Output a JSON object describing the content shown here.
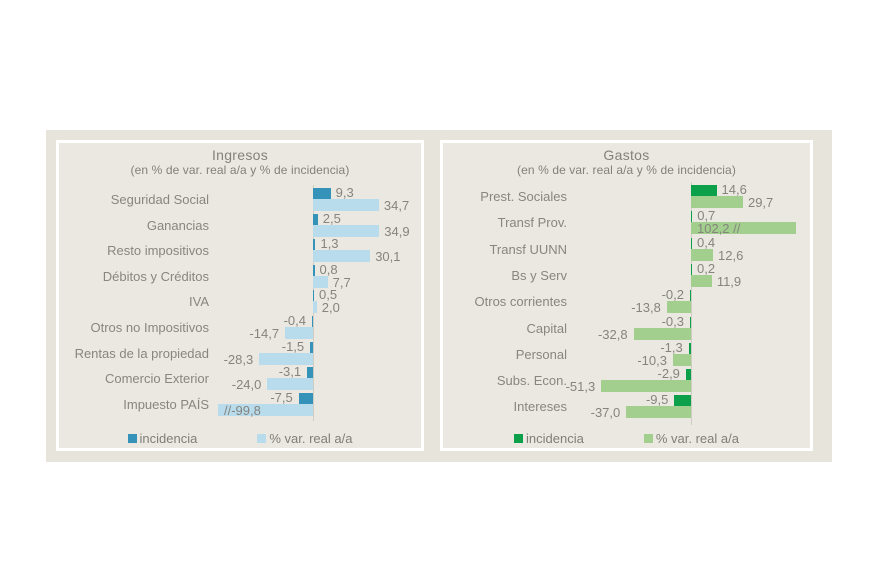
{
  "chart_data": [
    {
      "type": "bar",
      "orientation": "horizontal",
      "title": "Ingresos",
      "subtitle": "(en % de var. real a/a y % de incidencia)",
      "series_names": [
        "incidencia",
        "% var. real a/a"
      ],
      "colors": {
        "incidencia": "#3593b9",
        "variacion": "#b8dcec"
      },
      "legend": [
        {
          "name": "incidencia",
          "color": "#3593b9"
        },
        {
          "name": "% var. real a/a",
          "color": "#b8dcec"
        }
      ],
      "rows": [
        {
          "category": "Seguridad Social",
          "incidencia": 9.3,
          "incidencia_label": "9,3",
          "variacion": 34.7,
          "variacion_label": "34,7"
        },
        {
          "category": "Ganancias",
          "incidencia": 2.5,
          "incidencia_label": "2,5",
          "variacion": 34.9,
          "variacion_label": "34,9"
        },
        {
          "category": "Resto impositivos",
          "incidencia": 1.3,
          "incidencia_label": "1,3",
          "variacion": 30.1,
          "variacion_label": "30,1"
        },
        {
          "category": "Débitos y Créditos",
          "incidencia": 0.8,
          "incidencia_label": "0,8",
          "variacion": 7.7,
          "variacion_label": "7,7"
        },
        {
          "category": "IVA",
          "incidencia": 0.5,
          "incidencia_label": "0,5",
          "variacion": 2.0,
          "variacion_label": "2,0"
        },
        {
          "category": "Otros no Impositivos",
          "incidencia": -0.4,
          "incidencia_label": "-0,4",
          "variacion": -14.7,
          "variacion_label": "-14,7"
        },
        {
          "category": "Rentas de la propiedad",
          "incidencia": -1.5,
          "incidencia_label": "-1,5",
          "variacion": -28.3,
          "variacion_label": "-28,3"
        },
        {
          "category": "Comercio Exterior",
          "incidencia": -3.1,
          "incidencia_label": "-3,1",
          "variacion": -24.0,
          "variacion_label": "-24,0"
        },
        {
          "category": "Impuesto PAÍS",
          "incidencia": -7.5,
          "incidencia_label": "-7,5",
          "variacion": -99.8,
          "variacion_label": "//-99,8",
          "axis_break": true,
          "variacion_display": -50,
          "label_inside": true
        }
      ]
    },
    {
      "type": "bar",
      "orientation": "horizontal",
      "title": "Gastos",
      "subtitle": "(en % de var. real a/a y % de incidencia)",
      "series_names": [
        "incidencia",
        "% var. real a/a"
      ],
      "colors": {
        "incidencia": "#0da04b",
        "variacion": "#a2cf8d"
      },
      "legend": [
        {
          "name": "incidencia",
          "color": "#0da04b"
        },
        {
          "name": "% var. real a/a",
          "color": "#a2cf8d"
        }
      ],
      "rows": [
        {
          "category": "Prest. Sociales",
          "incidencia": 14.6,
          "incidencia_label": "14,6",
          "variacion": 29.7,
          "variacion_label": "29,7"
        },
        {
          "category": "Transf Prov.",
          "incidencia": 0.7,
          "incidencia_label": "0,7",
          "variacion": 102.2,
          "variacion_label": "102,2 //",
          "axis_break": true,
          "variacion_display": 60,
          "label_inside": true
        },
        {
          "category": "Transf UUNN",
          "incidencia": 0.4,
          "incidencia_label": "0,4",
          "variacion": 12.6,
          "variacion_label": "12,6"
        },
        {
          "category": "Bs y Serv",
          "incidencia": 0.2,
          "incidencia_label": "0,2",
          "variacion": 11.9,
          "variacion_label": "11,9"
        },
        {
          "category": "Otros corrientes",
          "incidencia": -0.2,
          "incidencia_label": "-0,2",
          "variacion": -13.8,
          "variacion_label": "-13,8"
        },
        {
          "category": "Capital",
          "incidencia": -0.3,
          "incidencia_label": "-0,3",
          "variacion": -32.8,
          "variacion_label": "-32,8"
        },
        {
          "category": "Personal",
          "incidencia": -1.3,
          "incidencia_label": "-1,3",
          "variacion": -10.3,
          "variacion_label": "-10,3"
        },
        {
          "category": "Subs. Econ.",
          "incidencia": -2.9,
          "incidencia_label": "-2,9",
          "variacion": -51.3,
          "variacion_label": "-51,3"
        },
        {
          "category": "Intereses",
          "incidencia": -9.5,
          "incidencia_label": "-9,5",
          "variacion": -37.0,
          "variacion_label": "-37,0"
        }
      ]
    }
  ]
}
